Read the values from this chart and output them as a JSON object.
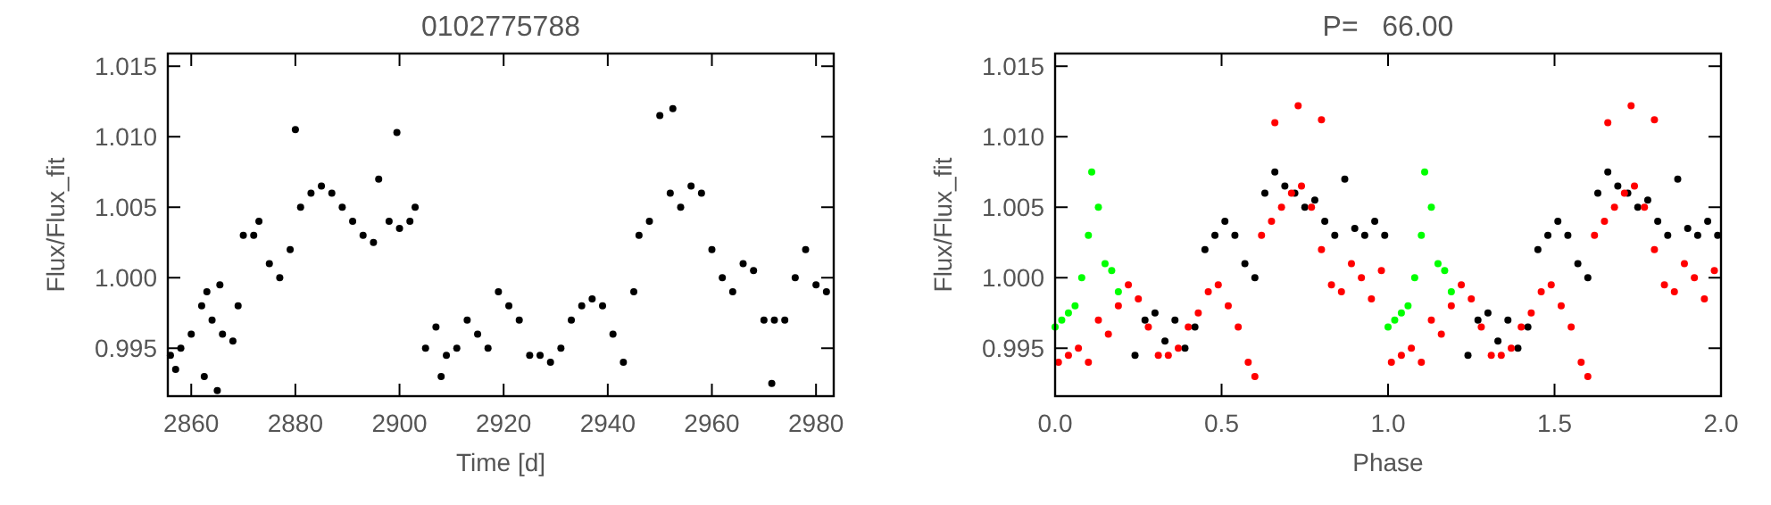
{
  "chart_data": [
    {
      "type": "scatter",
      "title": "0102775788",
      "xlabel": "Time [d]",
      "ylabel": "Flux/Flux_fit",
      "marker": "circle",
      "grid": false,
      "xlim": [
        2855.5,
        2983.4
      ],
      "xticks": [
        2860,
        2880,
        2900,
        2920,
        2940,
        2960,
        2980
      ],
      "ylim": [
        0.9916,
        1.0159
      ],
      "yticks": [
        {
          "value": 0.995,
          "label": "0.995"
        },
        {
          "value": 1.0,
          "label": "1.000"
        },
        {
          "value": 1.005,
          "label": "1.005"
        },
        {
          "value": 1.01,
          "label": "1.010"
        },
        {
          "value": 1.015,
          "label": "1.015"
        }
      ],
      "series": [
        {
          "color": "#000000",
          "x": [
            2856,
            2857,
            2858,
            2860,
            2862,
            2862.5,
            2863,
            2864,
            2865,
            2865.5,
            2866,
            2868,
            2869,
            2870,
            2872,
            2873,
            2875,
            2877,
            2879,
            2880,
            2881,
            2883,
            2885,
            2887,
            2889,
            2891,
            2893,
            2895,
            2896,
            2898,
            2899.5,
            2900,
            2902,
            2903,
            2905,
            2907,
            2908,
            2909,
            2911,
            2913,
            2915,
            2917,
            2919,
            2921,
            2923,
            2925,
            2927,
            2929,
            2931,
            2933,
            2935,
            2937,
            2939,
            2941,
            2943,
            2945,
            2946,
            2948,
            2950,
            2952,
            2952.5,
            2954,
            2956,
            2958,
            2960,
            2962,
            2964,
            2966,
            2968,
            2970,
            2971.5,
            2972,
            2974,
            2976,
            2978,
            2980,
            2982
          ],
          "values": [
            0.9945,
            0.9935,
            0.995,
            0.996,
            0.998,
            0.993,
            0.999,
            0.997,
            0.992,
            0.9995,
            0.996,
            0.9955,
            0.998,
            1.003,
            1.003,
            1.004,
            1.001,
            1.0,
            1.002,
            1.0105,
            1.005,
            1.006,
            1.0065,
            1.006,
            1.005,
            1.004,
            1.003,
            1.0025,
            1.007,
            1.004,
            1.0103,
            1.0035,
            1.004,
            1.005,
            0.995,
            0.9965,
            0.993,
            0.9945,
            0.995,
            0.997,
            0.996,
            0.995,
            0.999,
            0.998,
            0.997,
            0.9945,
            0.9945,
            0.994,
            0.995,
            0.997,
            0.998,
            0.9985,
            0.998,
            0.996,
            0.994,
            0.999,
            1.003,
            1.004,
            1.0115,
            1.006,
            1.012,
            1.005,
            1.0065,
            1.006,
            1.002,
            1.0,
            0.999,
            1.001,
            1.0005,
            0.997,
            0.9925,
            0.997,
            0.997,
            1.0,
            1.002,
            0.9995,
            0.999
          ]
        }
      ]
    },
    {
      "type": "scatter",
      "title": "P=   66.00",
      "xlabel": "Phase",
      "ylabel": "Flux/Flux_fit",
      "marker": "circle",
      "grid": false,
      "xlim": [
        0,
        2
      ],
      "xticks": [
        {
          "value": 0,
          "label": "0.0"
        },
        {
          "value": 0.5,
          "label": "0.5"
        },
        {
          "value": 1,
          "label": "1.0"
        },
        {
          "value": 1.5,
          "label": "1.5"
        },
        {
          "value": 2,
          "label": "2.0"
        }
      ],
      "ylim": [
        0.9916,
        1.0159
      ],
      "yticks": [
        {
          "value": 0.995,
          "label": "0.995"
        },
        {
          "value": 1.0,
          "label": "1.000"
        },
        {
          "value": 1.005,
          "label": "1.005"
        },
        {
          "value": 1.01,
          "label": "1.010"
        },
        {
          "value": 1.015,
          "label": "1.015"
        }
      ],
      "series": [
        {
          "color": "#000000",
          "x": [
            0.24,
            0.27,
            0.3,
            0.33,
            0.36,
            0.39,
            0.42,
            0.45,
            0.48,
            0.51,
            0.54,
            0.57,
            0.6,
            0.63,
            0.66,
            0.69,
            0.72,
            0.75,
            0.78,
            0.81,
            0.84,
            0.87,
            0.9,
            0.93,
            0.96,
            0.99,
            1.24,
            1.27,
            1.3,
            1.33,
            1.36,
            1.39,
            1.42,
            1.45,
            1.48,
            1.51,
            1.54,
            1.57,
            1.6,
            1.63,
            1.66,
            1.69,
            1.72,
            1.75,
            1.78,
            1.81,
            1.84,
            1.87,
            1.9,
            1.93,
            1.96,
            1.99
          ],
          "values": [
            0.9945,
            0.997,
            0.9975,
            0.9955,
            0.997,
            0.995,
            0.9965,
            1.002,
            1.003,
            1.004,
            1.003,
            1.001,
            1.0,
            1.006,
            1.0075,
            1.0065,
            1.006,
            1.005,
            1.0055,
            1.004,
            1.003,
            1.007,
            1.0035,
            1.003,
            1.004,
            1.003,
            0.9945,
            0.997,
            0.9975,
            0.9955,
            0.997,
            0.995,
            0.9965,
            1.002,
            1.003,
            1.004,
            1.003,
            1.001,
            1.0,
            1.006,
            1.0075,
            1.0065,
            1.006,
            1.005,
            1.0055,
            1.004,
            1.003,
            1.007,
            1.0035,
            1.003,
            1.004,
            1.003
          ]
        },
        {
          "color": "#ff0000",
          "x": [
            0.01,
            0.04,
            0.07,
            0.1,
            0.13,
            0.16,
            0.19,
            0.22,
            0.25,
            0.28,
            0.31,
            0.34,
            0.37,
            0.4,
            0.43,
            0.46,
            0.49,
            0.52,
            0.55,
            0.58,
            0.6,
            0.62,
            0.65,
            0.66,
            0.68,
            0.71,
            0.73,
            0.74,
            0.77,
            0.8,
            0.8,
            0.83,
            0.86,
            0.89,
            0.92,
            0.95,
            0.98,
            1.01,
            1.04,
            1.07,
            1.1,
            1.13,
            1.16,
            1.19,
            1.22,
            1.25,
            1.28,
            1.31,
            1.34,
            1.37,
            1.4,
            1.43,
            1.46,
            1.49,
            1.52,
            1.55,
            1.58,
            1.6,
            1.62,
            1.65,
            1.66,
            1.68,
            1.71,
            1.73,
            1.74,
            1.77,
            1.8,
            1.8,
            1.83,
            1.86,
            1.89,
            1.92,
            1.95,
            1.98
          ],
          "values": [
            0.994,
            0.9945,
            0.995,
            0.994,
            0.997,
            0.996,
            0.998,
            0.9995,
            0.9985,
            0.9965,
            0.9945,
            0.9945,
            0.995,
            0.9965,
            0.9975,
            0.999,
            0.9995,
            0.998,
            0.9965,
            0.994,
            0.993,
            1.003,
            1.004,
            1.011,
            1.005,
            1.006,
            1.0122,
            1.0065,
            1.005,
            1.002,
            1.0112,
            0.9995,
            0.999,
            1.001,
            1.0,
            0.9985,
            1.0005,
            0.994,
            0.9945,
            0.995,
            0.994,
            0.997,
            0.996,
            0.998,
            0.9995,
            0.9985,
            0.9965,
            0.9945,
            0.9945,
            0.995,
            0.9965,
            0.9975,
            0.999,
            0.9995,
            0.998,
            0.9965,
            0.994,
            0.993,
            1.003,
            1.004,
            1.011,
            1.005,
            1.006,
            1.0122,
            1.0065,
            1.005,
            1.002,
            1.0112,
            0.9995,
            0.999,
            1.001,
            1.0,
            0.9985,
            1.0005
          ]
        },
        {
          "color": "#00ff00",
          "x": [
            0.0,
            0.02,
            0.04,
            0.06,
            0.08,
            0.1,
            0.11,
            0.13,
            0.15,
            0.17,
            0.19,
            1.0,
            1.02,
            1.04,
            1.06,
            1.08,
            1.1,
            1.11,
            1.13,
            1.15,
            1.17,
            1.19
          ],
          "values": [
            0.9965,
            0.997,
            0.9975,
            0.998,
            1.0,
            1.003,
            1.0075,
            1.005,
            1.001,
            1.0005,
            0.999,
            0.9965,
            0.997,
            0.9975,
            0.998,
            1.0,
            1.003,
            1.0075,
            1.005,
            1.001,
            1.0005,
            0.999
          ]
        }
      ]
    }
  ]
}
